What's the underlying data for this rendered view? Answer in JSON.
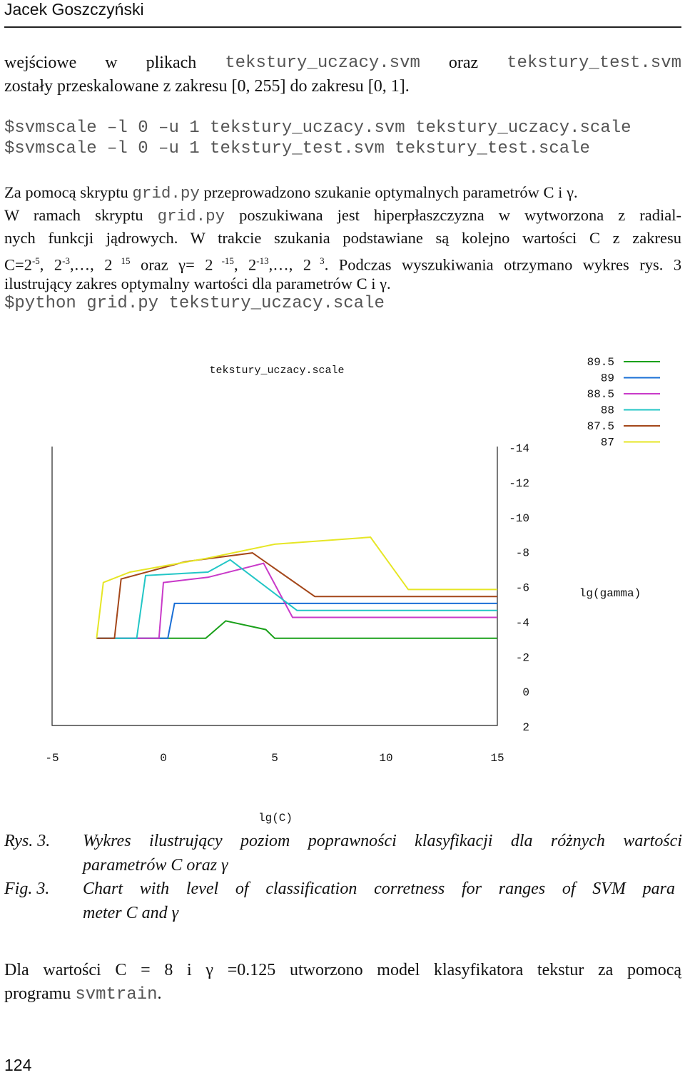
{
  "header": {
    "author": "Jacek Goszczyński"
  },
  "intro": {
    "word1": "wejściowe",
    "word2": "w",
    "word3": "plikach",
    "file1": "tekstury_uczacy.svm",
    "word4": "oraz",
    "file2": "tekstury_test.svm",
    "line2": "zostały przeskalowane z zakresu [0, 255] do zakresu [0, 1]."
  },
  "commands": [
    "$svmscale –l 0 –u 1 tekstury_uczacy.svm tekstury_uczacy.scale",
    "$svmscale –l 0 –u 1 tekstury_test.svm tekstury_test.scale"
  ],
  "grid_para": {
    "l1a": "Za pomocą skryptu ",
    "l1code": "grid.py",
    "l1b": " przeprowadzono szukanie optymalnych parametrów C i γ.",
    "l2a": "W ramach skryptu ",
    "l2code": "grid.py",
    "l2b": " poszukiwana jest hiperpłaszczyzna w wytworzona z radial-",
    "l3": "nych funkcji jądrowych. W trakcie szukania podstawiane są kolejno wartości C z zakresu",
    "l4a": "C=2",
    "l4s1": "-5",
    "l4b": ", 2",
    "l4s2": "-3",
    "l4c": ",…, 2",
    "l4s3": " 15",
    "l4d": " oraz γ= 2",
    "l4s4": " -15",
    "l4e": ", 2",
    "l4s5": "-13",
    "l4f": ",…, 2",
    "l4s6": " 3",
    "l4g": ". Podczas wyszukiwania otrzymano wykres rys. 3",
    "l5": "ilustrujący zakres optymalny wartości dla parametrów C i γ.",
    "cmd": "$python grid.py tekstury_uczacy.scale"
  },
  "chart_data": {
    "type": "line",
    "title": "tekstury_uczacy.scale",
    "xlabel": "lg(C)",
    "ylabel": "lg(gamma)",
    "xlim": [
      -5,
      15
    ],
    "ylim": [
      2,
      -14
    ],
    "xticks": [
      "-5",
      "0",
      "5",
      "10",
      "15"
    ],
    "yticks": [
      "-14",
      "-12",
      "-10",
      "-8",
      "-6",
      "-4",
      "-2",
      "0",
      "2"
    ],
    "legend_position": "top-right",
    "series": [
      {
        "name": "89.5",
        "color": "#1aa01a",
        "x": [
          -3,
          1.9,
          2.8,
          4.6,
          5,
          15
        ],
        "y": [
          -3,
          -3,
          -4,
          -3.5,
          -3,
          -3
        ]
      },
      {
        "name": "89",
        "color": "#1a6fd6",
        "x": [
          -3,
          0.2,
          0.5,
          15
        ],
        "y": [
          -3,
          -3,
          -5,
          -5
        ]
      },
      {
        "name": "88.5",
        "color": "#c93ac9",
        "x": [
          -3,
          -0.2,
          0,
          2,
          4.5,
          5.8,
          15
        ],
        "y": [
          -3,
          -3,
          -6.2,
          -6.5,
          -7.3,
          -4.2,
          -4.2
        ]
      },
      {
        "name": "88",
        "color": "#22c6c6",
        "x": [
          -3,
          -1.2,
          -0.8,
          2,
          3,
          6,
          15
        ],
        "y": [
          -3,
          -3,
          -6.6,
          -6.8,
          -7.5,
          -4.6,
          -4.6
        ]
      },
      {
        "name": "87.5",
        "color": "#a4471a",
        "x": [
          -3,
          -2.2,
          -1.9,
          1,
          4,
          6.8,
          15
        ],
        "y": [
          -3,
          -3,
          -6.4,
          -7.4,
          -7.9,
          -5.4,
          -5.4
        ]
      },
      {
        "name": "87",
        "color": "#e6e626",
        "x": [
          -3,
          -2.7,
          -1.5,
          2,
          5,
          9.3,
          11,
          15
        ],
        "y": [
          -3,
          -6.2,
          -6.8,
          -7.6,
          -8.4,
          -8.8,
          -5.8,
          -5.8
        ]
      }
    ]
  },
  "figure": {
    "rys_label": "Rys. 3.",
    "rys_line1": "Wykres ilustrujący poziom poprawności klasyfikacji dla różnych wartości",
    "rys_line2": "parametrów C oraz γ",
    "fig_label": "Fig. 3.",
    "fig_line1": "Chart with level of classification corretness for ranges of SVM para",
    "fig_line2": "meter C and γ"
  },
  "final": {
    "line1": "Dla wartości C = 8 i γ =0.125 utworzono model klasyfikatora tekstur za pomocą",
    "line2a": "programu ",
    "line2code": "svmtrain",
    "line2b": "."
  },
  "footer": {
    "page": "124"
  }
}
